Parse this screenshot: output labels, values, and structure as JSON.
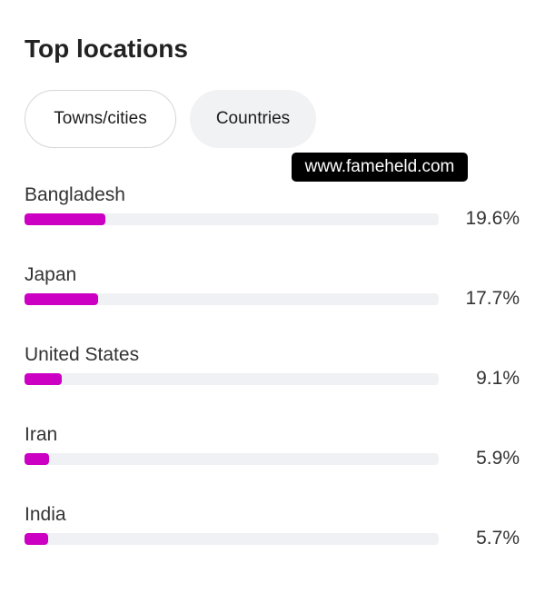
{
  "title": "Top locations",
  "tabs": [
    {
      "label": "Towns/cities",
      "selected": false
    },
    {
      "label": "Countries",
      "selected": true
    }
  ],
  "watermark": "www.fameheld.com",
  "bar_color": "#cc00c2",
  "locations": [
    {
      "name": "Bangladesh",
      "percent": 19.6,
      "label": "19.6%"
    },
    {
      "name": "Japan",
      "percent": 17.7,
      "label": "17.7%"
    },
    {
      "name": "United States",
      "percent": 9.1,
      "label": "9.1%"
    },
    {
      "name": "Iran",
      "percent": 5.9,
      "label": "5.9%"
    },
    {
      "name": "India",
      "percent": 5.7,
      "label": "5.7%"
    }
  ]
}
